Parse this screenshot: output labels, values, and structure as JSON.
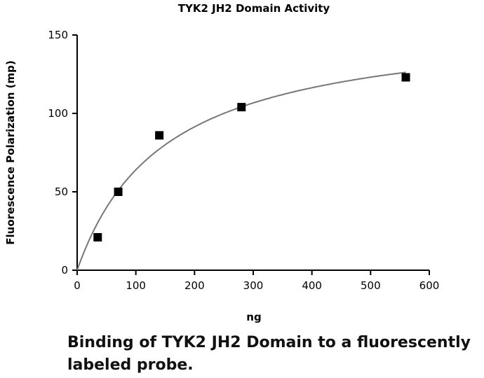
{
  "chart_data": {
    "type": "scatter",
    "title": "TYK2 JH2 Domain Activity",
    "xlabel": "ng",
    "ylabel": "Fluorescence Polarization (mp)",
    "xlim": [
      0,
      600
    ],
    "ylim": [
      0,
      150
    ],
    "xticks": [
      0,
      100,
      200,
      300,
      400,
      500,
      600
    ],
    "yticks": [
      0,
      50,
      100,
      150
    ],
    "grid": false,
    "legend": "none",
    "series": [
      {
        "x": [
          35,
          70,
          140,
          280,
          560
        ],
        "y": [
          21,
          50,
          86,
          104,
          123
        ]
      }
    ],
    "fit_curve": {
      "model": "one-site saturation binding",
      "bmax": 160,
      "kd": 150
    },
    "colors": {
      "points": "#000000",
      "fit_line": "#777777",
      "axes": "#000000"
    }
  },
  "caption": "Binding of TYK2 JH2 Domain to a fluorescently labeled probe."
}
